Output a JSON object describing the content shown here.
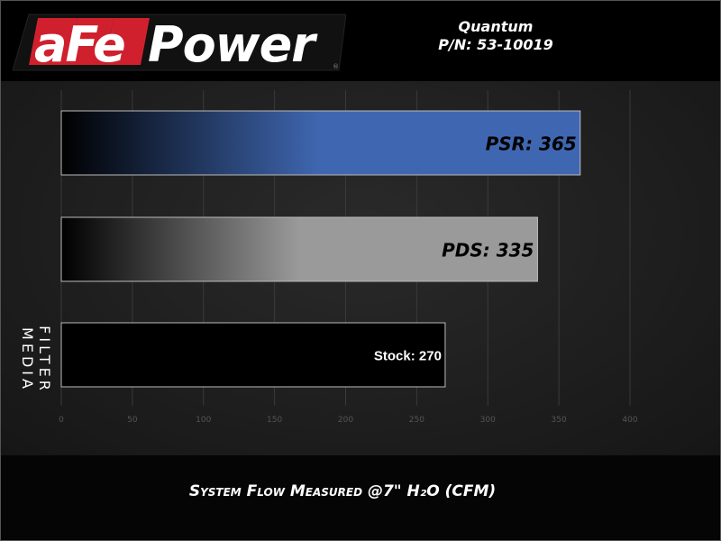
{
  "header": {
    "logo_text": "aFePower",
    "product_name": "Quantum",
    "part_number": "P/N: 53-10019"
  },
  "colors": {
    "psr": "#3f67b1",
    "pds": "#9a9a9a",
    "stock": "#000000",
    "logo_red": "#d0202e"
  },
  "chart_data": {
    "type": "bar",
    "orientation": "horizontal",
    "categories": [
      "PSR",
      "PDS",
      "Stock"
    ],
    "values": [
      365,
      335,
      270
    ],
    "data_labels": [
      "PSR: 365",
      "PDS: 335",
      "Stock: 270"
    ],
    "xlabel": "System Flow Measured @7\" H₂O (CFM)",
    "ylabel": "FILTER MEDIA",
    "xlim": [
      0,
      400
    ],
    "xticks": [
      "0",
      "50",
      "100",
      "150",
      "200",
      "250",
      "300",
      "350",
      "400"
    ],
    "grid": true
  }
}
